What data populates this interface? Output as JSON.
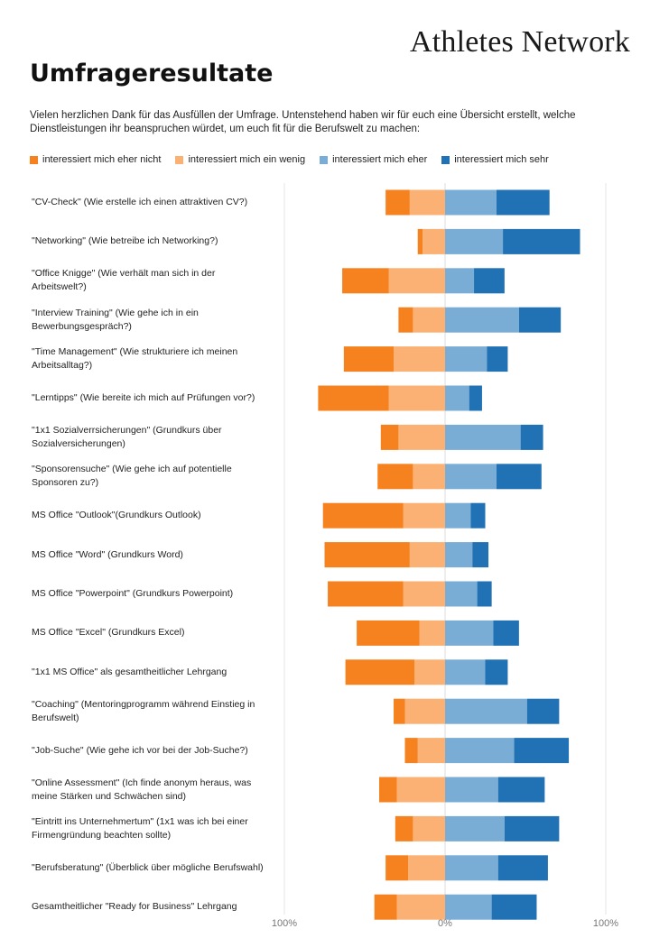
{
  "brand": "Athletes Network",
  "page_title": "Umfrageresultate",
  "intro": "Vielen herzlichen Dank für das Ausfüllen der Umfrage. Untenstehend haben wir für euch eine Übersicht erstellt, welche Dienstleistungen ihr beanspruchen würdet, um euch fit für die Berufswelt zu machen:",
  "chart_data": {
    "type": "bar",
    "subtype": "diverging-stacked-horizontal",
    "xlim": [
      -100,
      100
    ],
    "xunit": "%",
    "ticks": [
      {
        "value": -100,
        "label": "100%"
      },
      {
        "value": 0,
        "label": "0%"
      },
      {
        "value": 100,
        "label": "100%"
      }
    ],
    "legend_position": "top",
    "series": [
      {
        "name": "interessiert mich eher nicht",
        "color": "#f5821f",
        "side": "negative"
      },
      {
        "name": "interessiert mich ein wenig",
        "color": "#fbb173",
        "side": "negative"
      },
      {
        "name": "interessiert mich eher",
        "color": "#7aadd6",
        "side": "positive"
      },
      {
        "name": "interessiert mich sehr",
        "color": "#2171b5",
        "side": "positive"
      }
    ],
    "categories": [
      "\"CV-Check\" (Wie erstelle ich einen attraktiven CV?)",
      "\"Networking\" (Wie betreibe ich Networking?)",
      "\"Office Knigge\" (Wie verhält man sich in der Arbeitswelt?)",
      "\"Interview Training\" (Wie gehe ich in ein Bewerbungsgespräch?)",
      "\"Time Management\" (Wie strukturiere ich meinen Arbeitsalltag?)",
      "\"Lerntipps\" (Wie bereite ich mich auf Prüfungen vor?)",
      "\"1x1 Sozialverrsicherungen\" (Grundkurs über Sozialversicherungen)",
      "\"Sponsorensuche\" (Wie gehe ich auf potentielle Sponsoren zu?)",
      "MS Office \"Outlook\"(Grundkurs Outlook)",
      "MS Office \"Word\" (Grundkurs Word)",
      "MS Office \"Powerpoint\" (Grundkurs Powerpoint)",
      "MS Office \"Excel\" (Grundkurs Excel)",
      "\"1x1 MS Office\" als gesamtheitlicher Lehrgang",
      "\"Coaching\" (Mentoringprogramm während Einstieg in Berufswelt)",
      "\"Job-Suche\" (Wie gehe ich vor bei der Job-Suche?)",
      "\"Online Assessment\" (Ich finde anonym heraus, was meine Stärken und Schwächen sind)",
      "\"Eintritt ins Unternehmertum\" (1x1 was ich bei einer Firmengründung beachten sollte)",
      "\"Berufsberatung\" (Überblick über mögliche Berufswahl)",
      "Gesamtheitlicher \"Ready for Business\" Lehrgang"
    ],
    "values": [
      [
        15,
        22,
        32,
        33
      ],
      [
        3,
        14,
        36,
        48
      ],
      [
        29,
        35,
        18,
        19
      ],
      [
        9,
        20,
        46,
        26
      ],
      [
        31,
        32,
        26,
        13
      ],
      [
        44,
        35,
        15,
        8
      ],
      [
        11,
        29,
        47,
        14
      ],
      [
        22,
        20,
        32,
        28
      ],
      [
        50,
        26,
        16,
        9
      ],
      [
        53,
        22,
        17,
        10
      ],
      [
        47,
        26,
        20,
        9
      ],
      [
        39,
        16,
        30,
        16
      ],
      [
        43,
        19,
        25,
        14
      ],
      [
        7,
        25,
        51,
        20
      ],
      [
        8,
        17,
        43,
        34
      ],
      [
        11,
        30,
        33,
        29
      ],
      [
        11,
        20,
        37,
        34
      ],
      [
        14,
        23,
        33,
        31
      ],
      [
        14,
        30,
        29,
        28
      ]
    ]
  }
}
